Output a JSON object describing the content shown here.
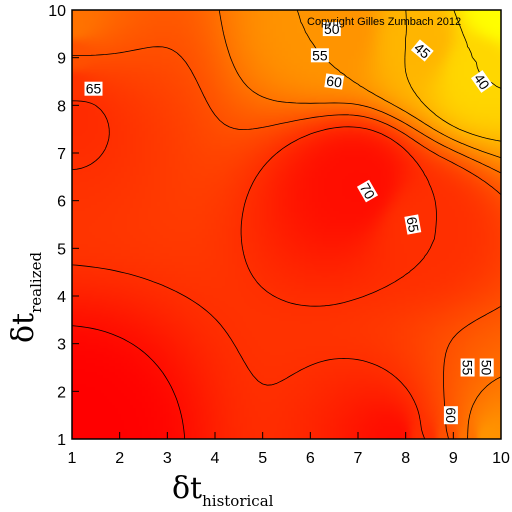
{
  "chart_data": {
    "type": "heatmap",
    "subtype": "filled-contour",
    "copyright": "Copyright Gilles Zumbach 2012",
    "x_axis": {
      "symbol": "δt",
      "subscript": "historical",
      "range": [
        1,
        10
      ],
      "ticks": [
        "1",
        "2",
        "3",
        "4",
        "5",
        "6",
        "7",
        "8",
        "9",
        "10"
      ]
    },
    "y_axis": {
      "symbol": "δt",
      "subscript": "realized",
      "range": [
        1,
        10
      ],
      "ticks": [
        "1",
        "2",
        "3",
        "4",
        "5",
        "6",
        "7",
        "8",
        "9",
        "10"
      ]
    },
    "contour_levels": [
      40,
      45,
      50,
      55,
      60,
      65,
      70
    ],
    "colormap": [
      "#ff0000",
      "#ff3300",
      "#ff6600",
      "#ff9900",
      "#ffcc00",
      "#ffff00"
    ],
    "z_range": [
      34,
      72
    ],
    "surface_samples": [
      {
        "x": 1,
        "y": 1,
        "z": 72
      },
      {
        "x": 1,
        "y": 7.8,
        "z": 65.6
      },
      {
        "x": 1,
        "y": 8.4,
        "z": 64.4
      },
      {
        "x": 1,
        "y": 9.05,
        "z": 60
      },
      {
        "x": 1,
        "y": 9.7,
        "z": 55
      },
      {
        "x": 7,
        "y": 6.3,
        "z": 70
      },
      {
        "x": 7.8,
        "y": 1,
        "z": 70
      },
      {
        "x": 8.3,
        "y": 5.5,
        "z": 65
      },
      {
        "x": 8.4,
        "y": 1,
        "z": 65
      },
      {
        "x": 8.9,
        "y": 1,
        "z": 60
      },
      {
        "x": 9.3,
        "y": 1,
        "z": 55
      },
      {
        "x": 9.7,
        "y": 1,
        "z": 50
      },
      {
        "x": 6.5,
        "y": 9.6,
        "z": 50
      },
      {
        "x": 8.3,
        "y": 9.35,
        "z": 45
      },
      {
        "x": 9.5,
        "y": 8.8,
        "z": 40
      },
      {
        "x": 10,
        "y": 10,
        "z": 34
      }
    ],
    "contour_labels": [
      {
        "text": "65",
        "x": 1.45,
        "y": 8.35,
        "angle": 0
      },
      {
        "text": "50",
        "x": 6.45,
        "y": 9.6,
        "angle": 0
      },
      {
        "text": "55",
        "x": 6.2,
        "y": 9.05,
        "angle": 0
      },
      {
        "text": "60",
        "x": 6.5,
        "y": 8.5,
        "angle": 8
      },
      {
        "text": "45",
        "x": 8.35,
        "y": 9.15,
        "angle": 40
      },
      {
        "text": "40",
        "x": 9.6,
        "y": 8.5,
        "angle": 55
      },
      {
        "text": "70",
        "x": 7.2,
        "y": 6.2,
        "angle": 60
      },
      {
        "text": "65",
        "x": 8.15,
        "y": 5.5,
        "angle": 80
      },
      {
        "text": "55",
        "x": 9.3,
        "y": 2.5,
        "angle": 90
      },
      {
        "text": "50",
        "x": 9.7,
        "y": 2.5,
        "angle": 90
      },
      {
        "text": "60",
        "x": 8.95,
        "y": 1.5,
        "angle": 90
      }
    ]
  }
}
